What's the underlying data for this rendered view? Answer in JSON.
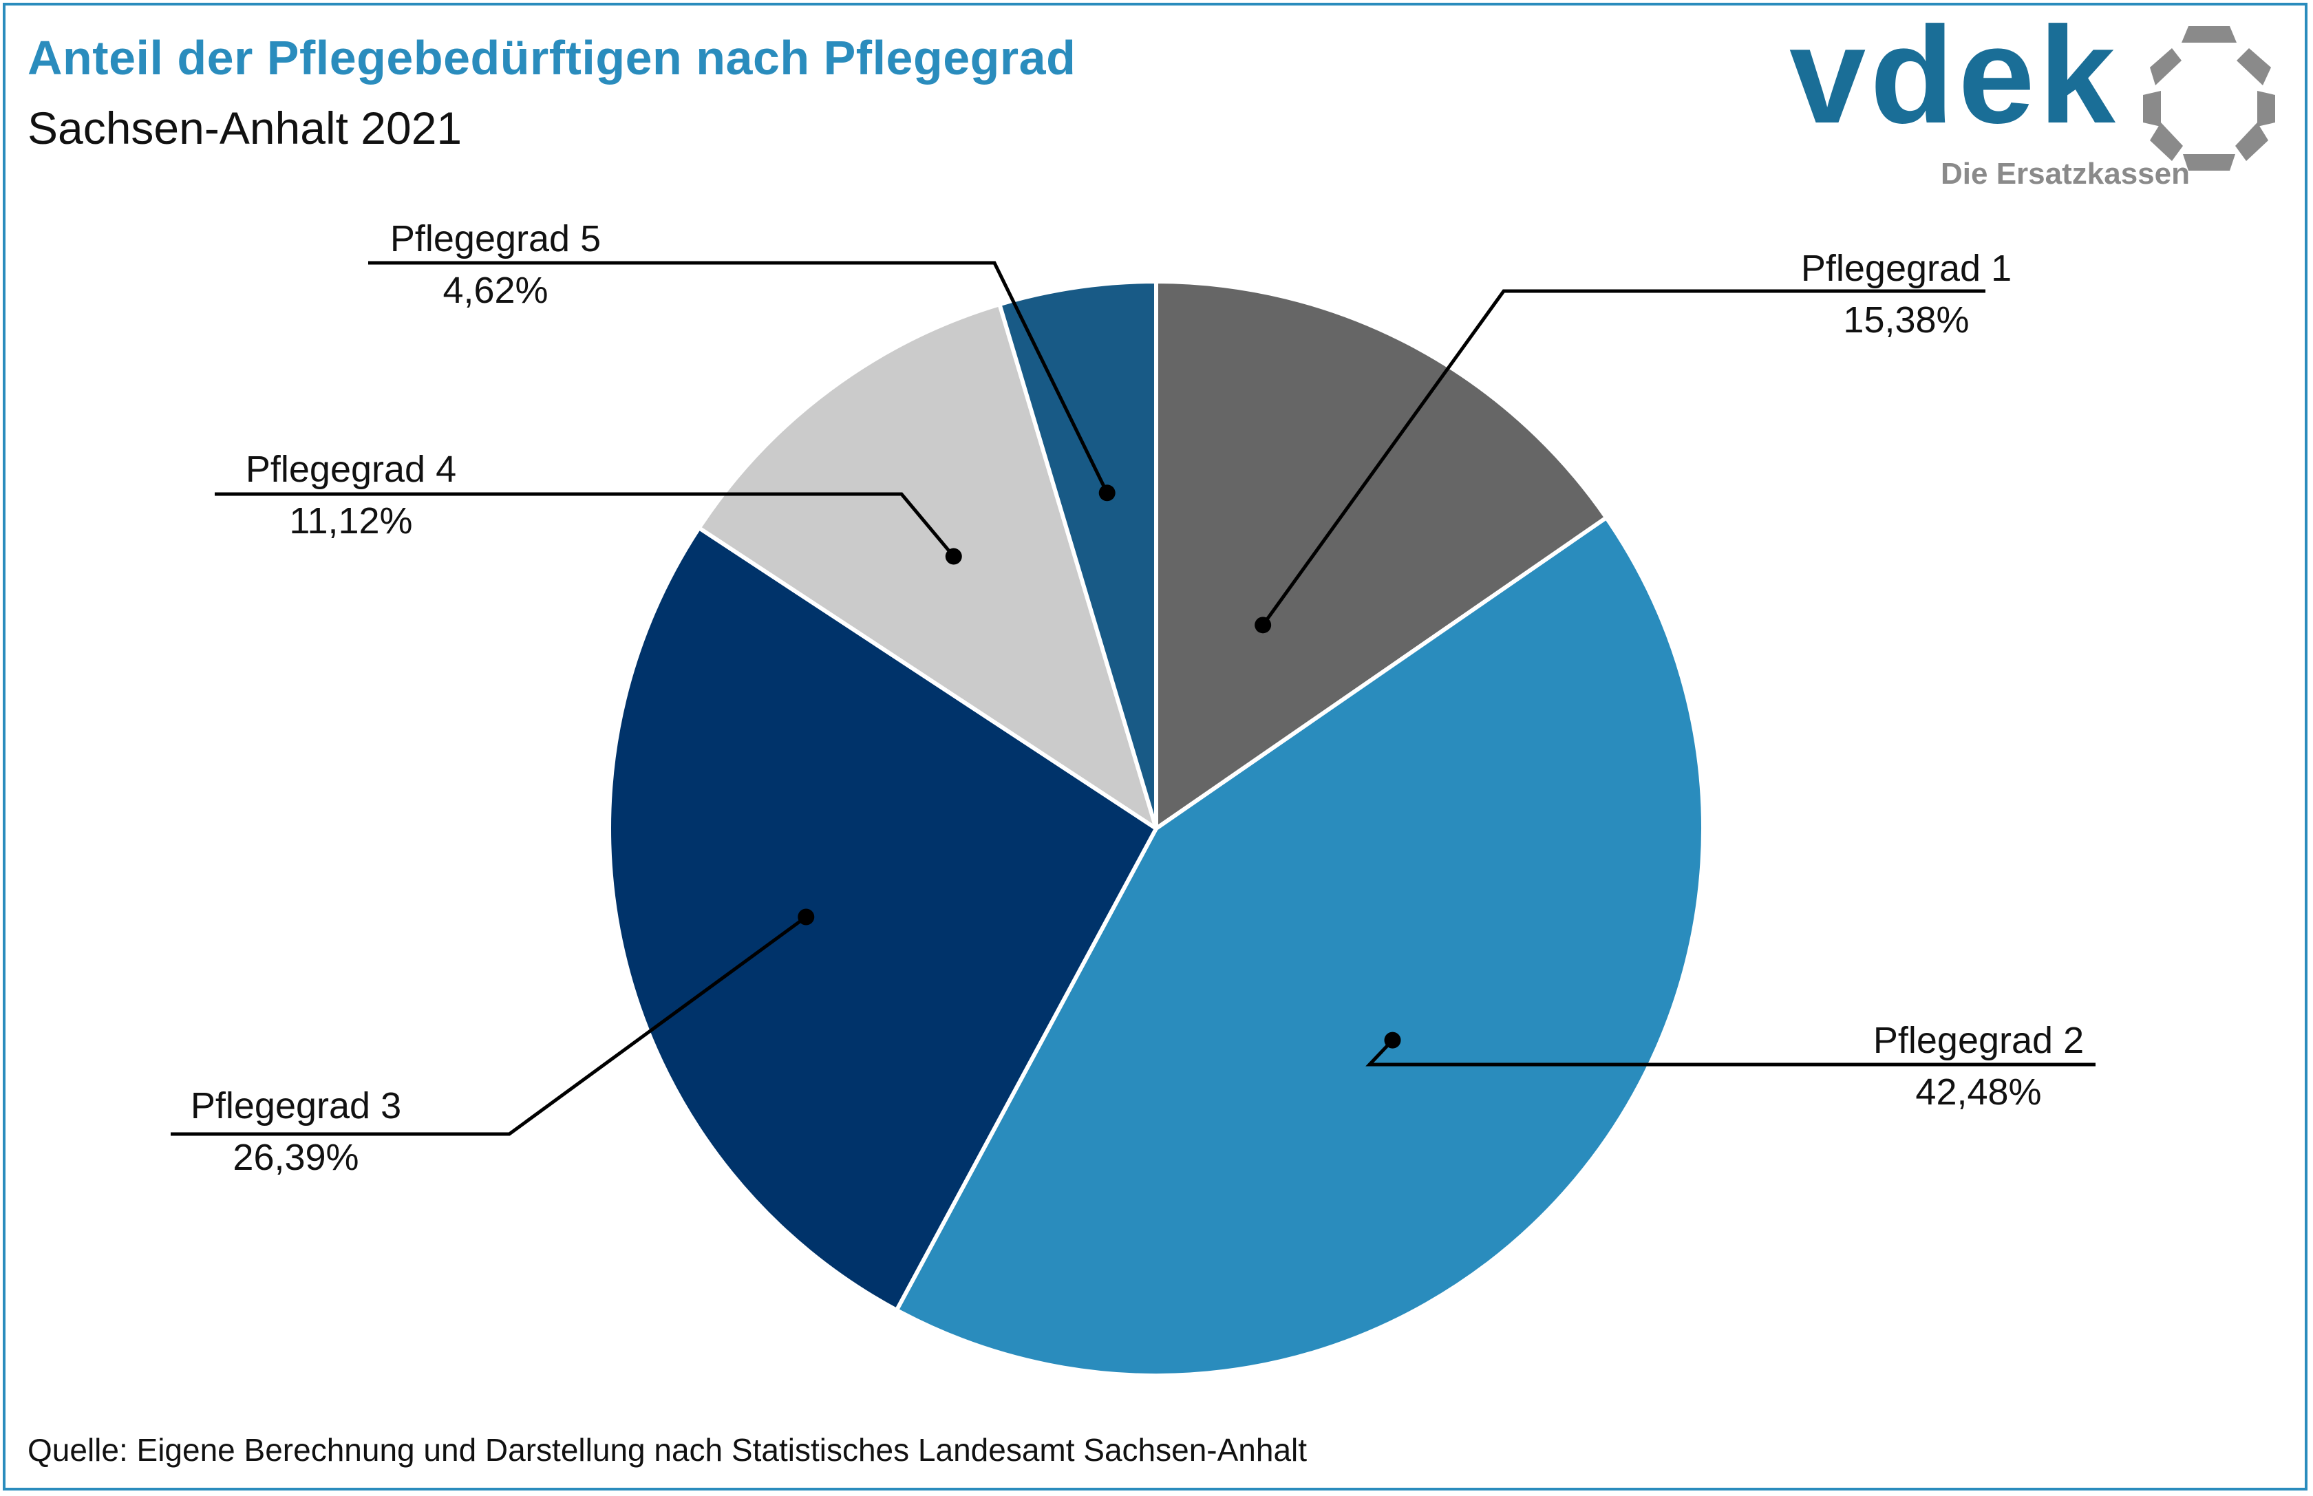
{
  "header": {
    "title": "Anteil der Pflegebedürftigen nach Pflegegrad",
    "subtitle": "Sachsen-Anhalt 2021"
  },
  "logo": {
    "word": "vdek",
    "tagline": "Die Ersatzkassen",
    "word_color": "#1a6e97",
    "ring_color": "#8a8a8a"
  },
  "footer": {
    "source": "Quelle: Eigene Berechnung und Darstellung nach Statistisches Landesamt Sachsen-Anhalt"
  },
  "chart_data": {
    "type": "pie",
    "title": "Anteil der Pflegebedürftigen nach Pflegegrad",
    "subtitle": "Sachsen-Anhalt 2021",
    "start": "12 o'clock",
    "direction": "clockwise",
    "slices": [
      {
        "label": "Pflegegrad 1",
        "value": 15.38,
        "value_label": "15,38%",
        "color": "#666666"
      },
      {
        "label": "Pflegegrad 2",
        "value": 42.48,
        "value_label": "42,48%",
        "color": "#2a8cbd"
      },
      {
        "label": "Pflegegrad 3",
        "value": 26.39,
        "value_label": "26,39%",
        "color": "#00336a"
      },
      {
        "label": "Pflegegrad 4",
        "value": 11.12,
        "value_label": "11,12%",
        "color": "#cbcbcb"
      },
      {
        "label": "Pflegegrad 5",
        "value": 4.62,
        "value_label": "4,62%",
        "color": "#185a86"
      }
    ]
  }
}
